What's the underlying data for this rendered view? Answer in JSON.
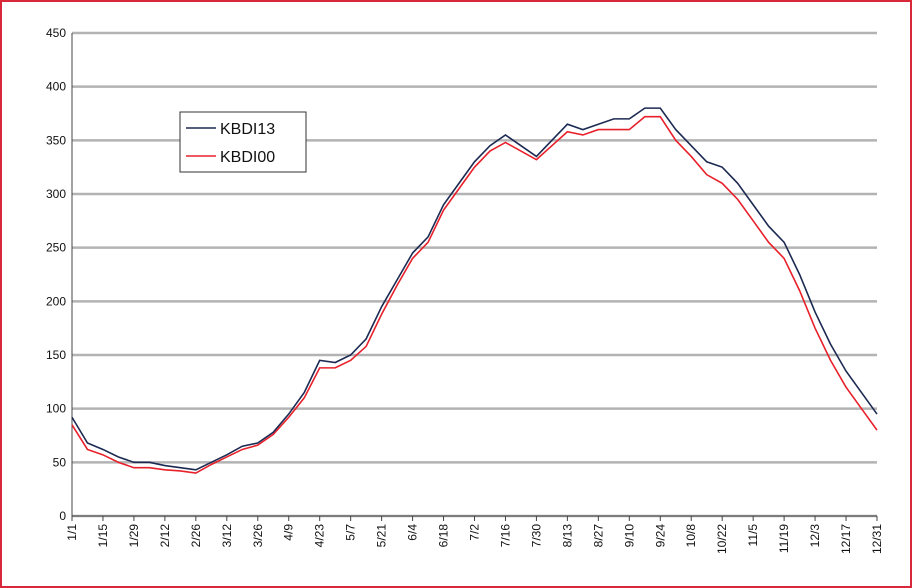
{
  "chart_data": {
    "type": "line",
    "categories": [
      "1/1",
      null,
      "1/15",
      null,
      "1/29",
      null,
      "2/12",
      null,
      "2/26",
      null,
      "3/12",
      null,
      "3/26",
      null,
      "4/9",
      null,
      "4/23",
      null,
      "5/7",
      null,
      "5/21",
      null,
      "6/4",
      null,
      "6/18",
      null,
      "7/2",
      null,
      "7/16",
      null,
      "7/30",
      null,
      "8/13",
      null,
      "8/27",
      null,
      "9/10",
      null,
      "9/24",
      null,
      "10/8",
      null,
      "10/22",
      null,
      "11/5",
      null,
      "11/19",
      null,
      "12/3",
      null,
      "12/17",
      null,
      "12/31"
    ],
    "series": [
      {
        "name": "KBDI13",
        "color": "#1c2a52",
        "values": [
          92,
          68,
          62,
          55,
          50,
          50,
          47,
          45,
          43,
          50,
          57,
          65,
          68,
          78,
          95,
          115,
          145,
          143,
          150,
          165,
          195,
          220,
          245,
          260,
          290,
          310,
          330,
          345,
          355,
          345,
          335,
          350,
          365,
          360,
          365,
          370,
          370,
          380,
          380,
          360,
          345,
          330,
          325,
          310,
          290,
          270,
          255,
          225,
          190,
          160,
          135,
          115,
          95
        ]
      },
      {
        "name": "KBDI00",
        "color": "#e8202a",
        "values": [
          85,
          62,
          57,
          50,
          45,
          45,
          43,
          42,
          40,
          48,
          55,
          62,
          66,
          76,
          92,
          110,
          138,
          138,
          145,
          158,
          188,
          215,
          240,
          255,
          285,
          305,
          325,
          340,
          348,
          340,
          332,
          345,
          358,
          355,
          360,
          360,
          360,
          372,
          372,
          350,
          335,
          318,
          310,
          295,
          275,
          255,
          240,
          210,
          175,
          145,
          120,
          100,
          80
        ]
      }
    ],
    "ylim": [
      0,
      450
    ],
    "yticks": [
      0,
      50,
      100,
      150,
      200,
      250,
      300,
      350,
      400,
      450
    ],
    "grid": true,
    "legend": "upper left"
  }
}
